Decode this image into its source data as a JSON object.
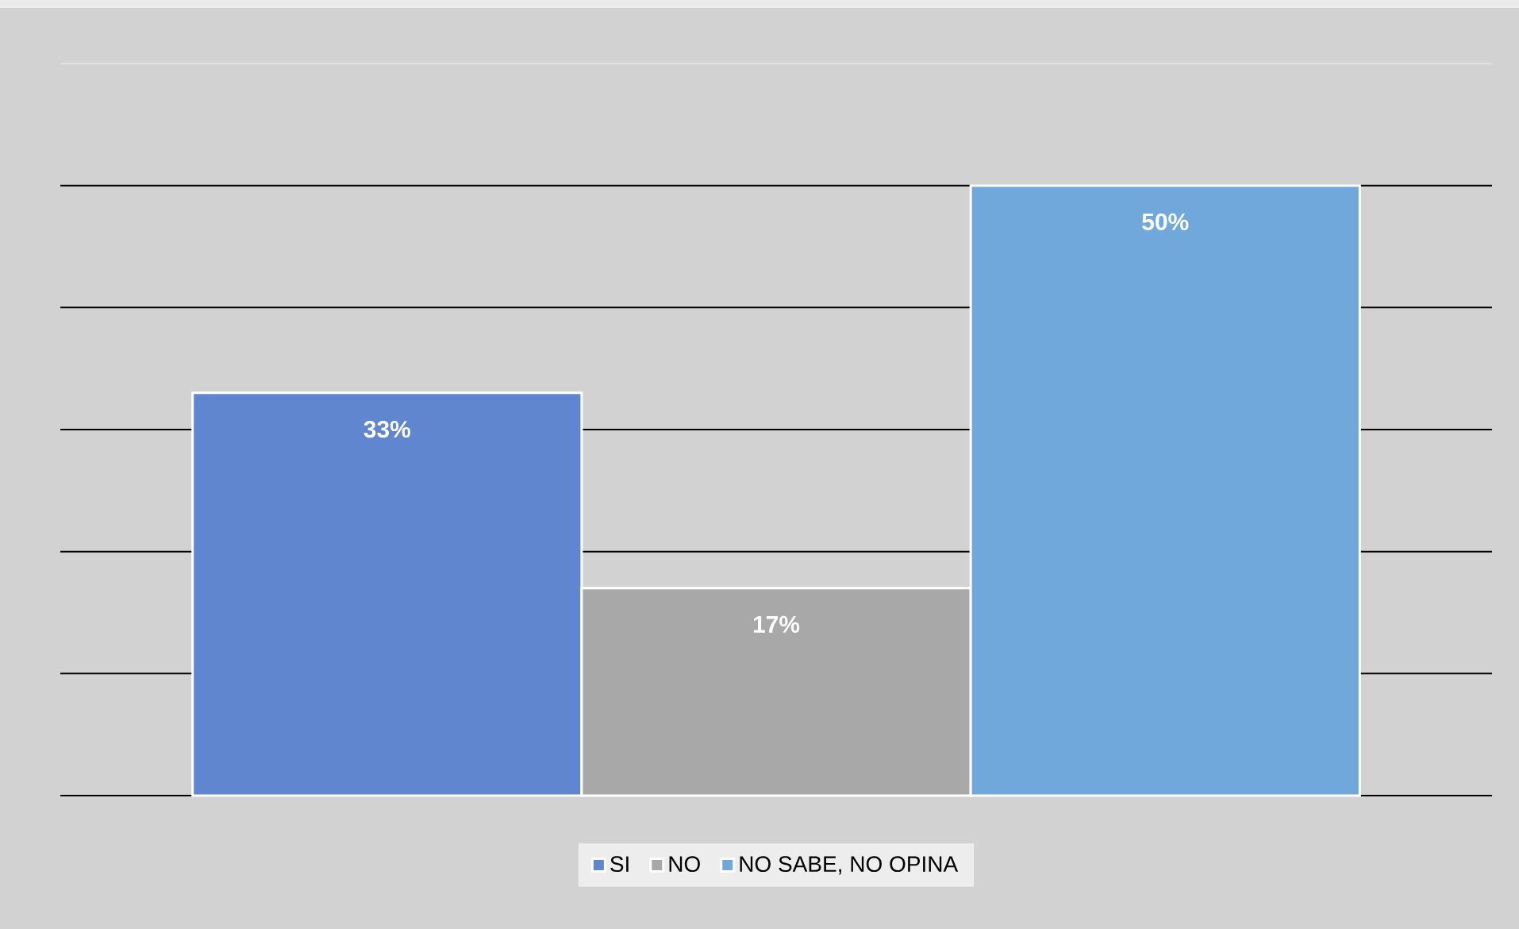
{
  "chart_data": {
    "type": "bar",
    "categories": [
      null
    ],
    "series": [
      {
        "name": "SI",
        "color": "#5f86cf",
        "values": [
          33
        ],
        "value_labels": [
          "33%"
        ]
      },
      {
        "name": "NO",
        "color": "#a8a8a8",
        "values": [
          17
        ],
        "value_labels": [
          "17%"
        ]
      },
      {
        "name": "NO SABE, NO OPINA",
        "color": "#70a8dc",
        "values": [
          50
        ],
        "value_labels": [
          "50%"
        ]
      }
    ],
    "ylim": [
      0,
      60
    ],
    "yticks": [
      {
        "value": 0,
        "label": null
      },
      {
        "value": 10,
        "label": null
      },
      {
        "value": 20,
        "label": null
      },
      {
        "value": 30,
        "label": null
      },
      {
        "value": 40,
        "label": null
      },
      {
        "value": 50,
        "label": null
      }
    ],
    "grid": "y",
    "legend": "bottom"
  }
}
